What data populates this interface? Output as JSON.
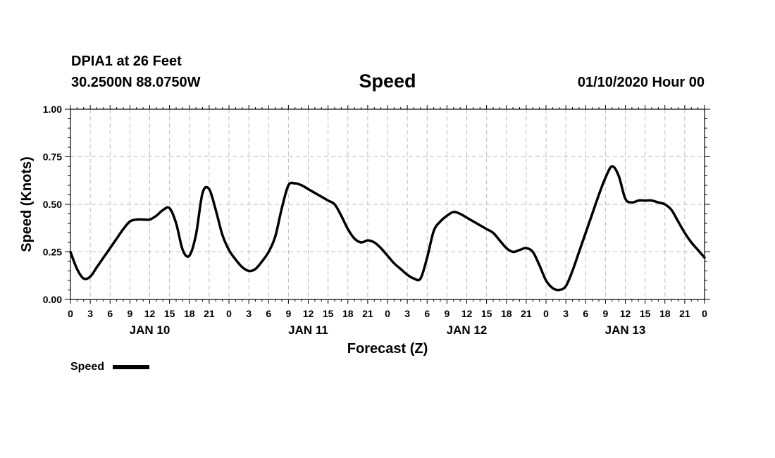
{
  "header": {
    "station": "DPIA1 at 26 Feet",
    "coords": "30.2500N 88.0750W",
    "run": "01/10/2020 Hour 00"
  },
  "chart_data": {
    "type": "line",
    "title": "Speed",
    "xlabel": "Forecast (Z)",
    "ylabel": "Speed (Knots)",
    "x_unit": "forecast hour",
    "xlim": [
      0,
      96
    ],
    "ylim": [
      0,
      1
    ],
    "y_ticks": [
      "0.00",
      "0.25",
      "0.50",
      "0.75",
      "1.00"
    ],
    "x_tick_labels": [
      "0",
      "3",
      "6",
      "9",
      "12",
      "15",
      "18",
      "21",
      "0",
      "3",
      "6",
      "9",
      "12",
      "15",
      "18",
      "21",
      "0",
      "3",
      "6",
      "9",
      "12",
      "15",
      "18",
      "21",
      "0",
      "3",
      "6",
      "9",
      "12",
      "15",
      "18",
      "21",
      "0"
    ],
    "day_labels": [
      {
        "label": "JAN 10",
        "hour": 12
      },
      {
        "label": "JAN 11",
        "hour": 36
      },
      {
        "label": "JAN 12",
        "hour": 60
      },
      {
        "label": "JAN 13",
        "hour": 84
      }
    ],
    "grid": true,
    "legend_position": "bottom-left",
    "series": [
      {
        "name": "Speed",
        "color": "#000000",
        "x": [
          0,
          1,
          2,
          3,
          4,
          5,
          6,
          7,
          8,
          9,
          10,
          11,
          12,
          13,
          14,
          15,
          16,
          17,
          18,
          19,
          20,
          21,
          22,
          23,
          24,
          25,
          26,
          27,
          28,
          29,
          30,
          31,
          32,
          33,
          34,
          35,
          36,
          37,
          38,
          39,
          40,
          41,
          42,
          43,
          44,
          45,
          46,
          47,
          48,
          49,
          50,
          51,
          52,
          53,
          54,
          55,
          56,
          57,
          58,
          59,
          60,
          61,
          62,
          63,
          64,
          65,
          66,
          67,
          68,
          69,
          70,
          71,
          72,
          73,
          74,
          75,
          76,
          77,
          78,
          79,
          80,
          81,
          82,
          83,
          84,
          85,
          86,
          87,
          88,
          89,
          90,
          91,
          92,
          93,
          94,
          95,
          96
        ],
        "y": [
          0.25,
          0.16,
          0.11,
          0.12,
          0.17,
          0.22,
          0.27,
          0.32,
          0.37,
          0.41,
          0.42,
          0.42,
          0.42,
          0.44,
          0.47,
          0.48,
          0.4,
          0.26,
          0.23,
          0.34,
          0.56,
          0.58,
          0.47,
          0.34,
          0.26,
          0.21,
          0.17,
          0.15,
          0.16,
          0.2,
          0.25,
          0.33,
          0.48,
          0.6,
          0.61,
          0.6,
          0.58,
          0.56,
          0.54,
          0.52,
          0.5,
          0.44,
          0.37,
          0.32,
          0.3,
          0.31,
          0.3,
          0.27,
          0.23,
          0.19,
          0.16,
          0.13,
          0.11,
          0.11,
          0.22,
          0.36,
          0.41,
          0.44,
          0.46,
          0.45,
          0.43,
          0.41,
          0.39,
          0.37,
          0.35,
          0.31,
          0.27,
          0.25,
          0.26,
          0.27,
          0.25,
          0.18,
          0.1,
          0.06,
          0.05,
          0.07,
          0.15,
          0.25,
          0.35,
          0.45,
          0.55,
          0.64,
          0.7,
          0.65,
          0.53,
          0.51,
          0.52,
          0.52,
          0.52,
          0.51,
          0.5,
          0.47,
          0.41,
          0.35,
          0.3,
          0.26,
          0.22
        ]
      }
    ]
  }
}
